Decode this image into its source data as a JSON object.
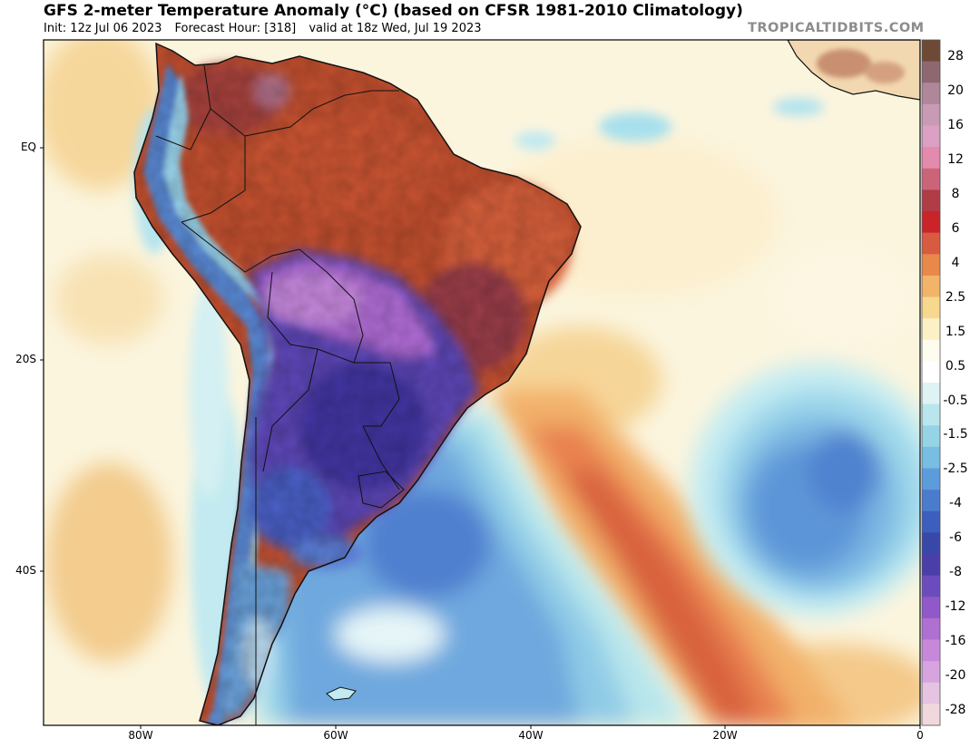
{
  "header": {
    "title": "GFS 2-meter Temperature Anomaly (°C) (based on CFSR 1981-2010 Climatology)",
    "init": "Init: 12z Jul 06 2023",
    "forecast_hour": "Forecast Hour: [318]",
    "valid": "valid at 18z Wed, Jul 19 2023",
    "brand": "TROPICALTIDBITS.COM"
  },
  "axes": {
    "lat_labels": [
      "EQ",
      "20S",
      "40S"
    ],
    "lon_labels": [
      "80W",
      "60W",
      "40W",
      "20W",
      "0"
    ]
  },
  "colorbar": {
    "labels": [
      "28",
      "20",
      "16",
      "12",
      "8",
      "6",
      "4",
      "2.5",
      "1.5",
      "0.5",
      "-0.5",
      "-1.5",
      "-2.5",
      "-4",
      "-6",
      "-8",
      "-12",
      "-16",
      "-20",
      "-28"
    ],
    "colors": [
      "#6e4a36",
      "#8e6870",
      "#b0869a",
      "#c99ab4",
      "#dca0c4",
      "#e48aac",
      "#cc6478",
      "#b03c46",
      "#c8242a",
      "#d85a40",
      "#e8884a",
      "#f2b468",
      "#f8d88e",
      "#fbf1c4",
      "#fefcee",
      "#ffffff",
      "#dff3f4",
      "#b8e6ec",
      "#94d4e6",
      "#78bde2",
      "#5d9cdc",
      "#4a7ccd",
      "#3c5ebc",
      "#3848a8",
      "#4a3ea8",
      "#6c4cbc",
      "#9058c8",
      "#b070d2",
      "#c888da",
      "#d8a4e0",
      "#e4c4e0",
      "#f0d8dc"
    ]
  },
  "palette": {
    "ocean_neutral": "#fbf5de",
    "continent_warm": "#c34a2c",
    "cold_core": "#5b3fb2",
    "ocean_cold": "#7aaee0",
    "warm_band": "#e27446"
  }
}
